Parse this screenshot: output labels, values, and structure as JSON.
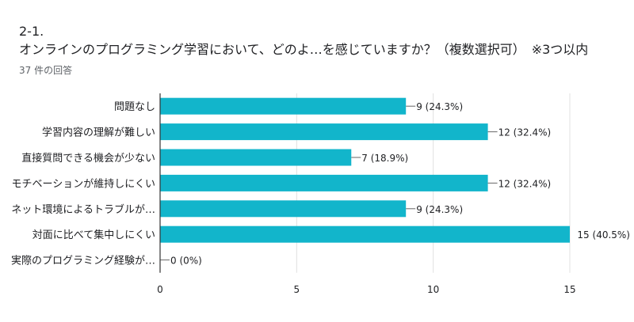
{
  "question": {
    "number": "2-1.",
    "title": "オンラインのプログラミング学習において、どのよ…を感じていますか？（複数選択可）　※3つ以内",
    "response_count": "37 件の回答"
  },
  "colors": {
    "bar": "#12b5cb",
    "axis": "#333333",
    "grid": "#e0e0e0",
    "text": "#202124"
  },
  "chart_data": {
    "type": "bar",
    "orientation": "horizontal",
    "categories": [
      "問題なし",
      "学習内容の理解が難しい",
      "直接質問できる機会が少ない",
      "モチベーションが維持しにくい",
      "ネット環境によるトラブルが…",
      "対面に比べて集中しにくい",
      "実際のプログラミング経験が…"
    ],
    "values": [
      9,
      12,
      7,
      12,
      9,
      15,
      0
    ],
    "data_labels": [
      "9 (24.3%)",
      "12 (32.4%)",
      "7 (18.9%)",
      "12 (32.4%)",
      "9 (24.3%)",
      "15 (40.5%)",
      "0 (0%)"
    ],
    "xlim": [
      0,
      15
    ],
    "xticks": [
      "0",
      "5",
      "10",
      "15"
    ],
    "grid": true
  }
}
